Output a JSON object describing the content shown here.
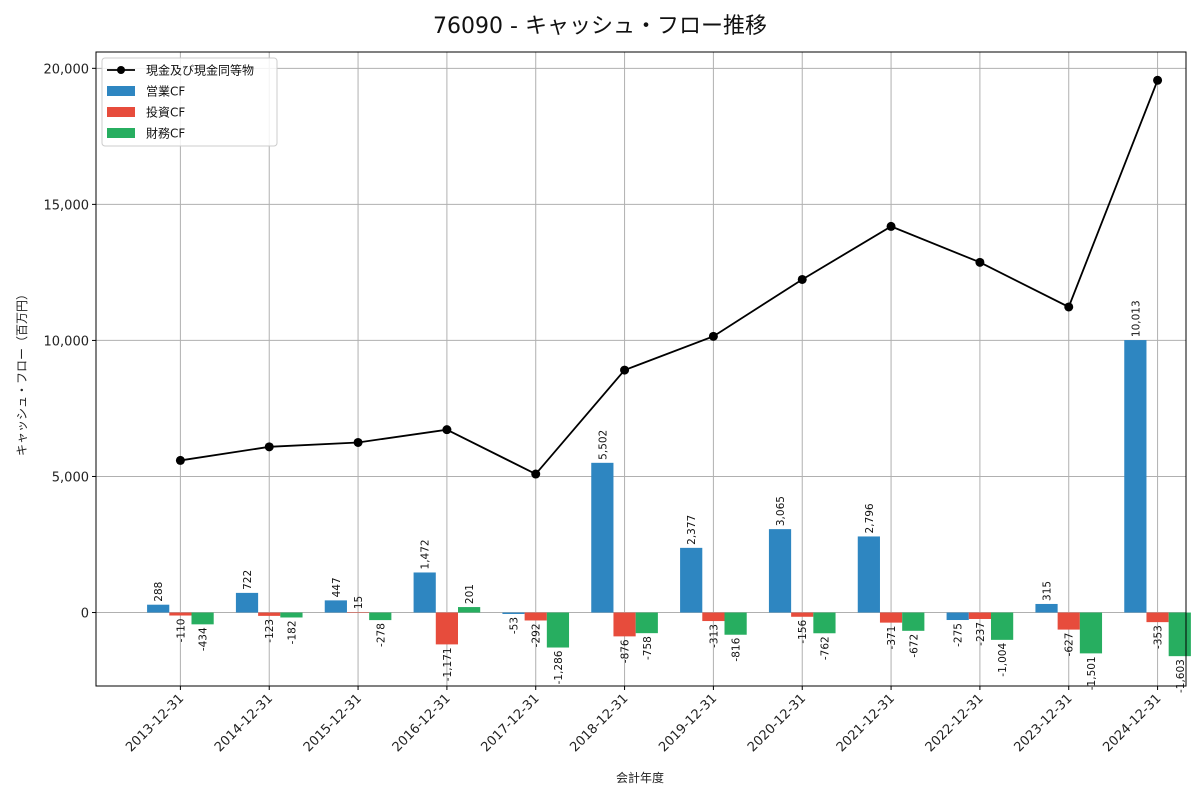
{
  "chart_data": {
    "type": "bar",
    "title": "76090 - キャッシュ・フロー推移",
    "xlabel": "会計年度",
    "ylabel": "キャッシュ・フロー（百万円）",
    "ylim": [
      -2700,
      20600
    ],
    "yticks": [
      0,
      5000,
      10000,
      15000,
      20000
    ],
    "ytick_labels": [
      "0",
      "5,000",
      "10,000",
      "15,000",
      "20,000"
    ],
    "grid": true,
    "legend_position": "top-left",
    "categories": [
      "2013-12-31",
      "2014-12-31",
      "2015-12-31",
      "2016-12-31",
      "2017-12-31",
      "2018-12-31",
      "2019-12-31",
      "2020-12-31",
      "2021-12-31",
      "2022-12-31",
      "2023-12-31",
      "2024-12-31"
    ],
    "series": [
      {
        "name": "営業CF",
        "type": "bar",
        "color": "#2e86c1",
        "values": [
          288,
          722,
          447,
          1472,
          -53,
          5502,
          2377,
          3065,
          2796,
          -275,
          315,
          10013
        ],
        "labels": [
          "288",
          "722",
          "447",
          "1,472",
          "-53",
          "5,502",
          "2,377",
          "3,065",
          "2,796",
          "-275",
          "315",
          "10,013"
        ]
      },
      {
        "name": "投資CF",
        "type": "bar",
        "color": "#e74c3c",
        "values": [
          -110,
          -123,
          15,
          -1171,
          -292,
          -876,
          -313,
          -156,
          -371,
          -237,
          -627,
          -353
        ],
        "labels": [
          "-110",
          "-123",
          "15",
          "-1,171",
          "-292",
          "-876",
          "-313",
          "-156",
          "-371",
          "-237",
          "-627",
          "-353"
        ]
      },
      {
        "name": "財務CF",
        "type": "bar",
        "color": "#27ae60",
        "values": [
          -434,
          -182,
          -278,
          201,
          -1286,
          -758,
          -816,
          -762,
          -672,
          -1004,
          -1501,
          -1603
        ],
        "labels": [
          "-434",
          "-182",
          "-278",
          "201",
          "-1,286",
          "-758",
          "-816",
          "-762",
          "-672",
          "-1,004",
          "-1,501",
          "-1,603"
        ]
      },
      {
        "name": "現金及び現金同等物",
        "type": "line",
        "color": "#000000",
        "values": [
          5590,
          6090,
          6250,
          6720,
          5090,
          8910,
          10150,
          12240,
          14190,
          12870,
          11230,
          19560
        ]
      }
    ]
  }
}
